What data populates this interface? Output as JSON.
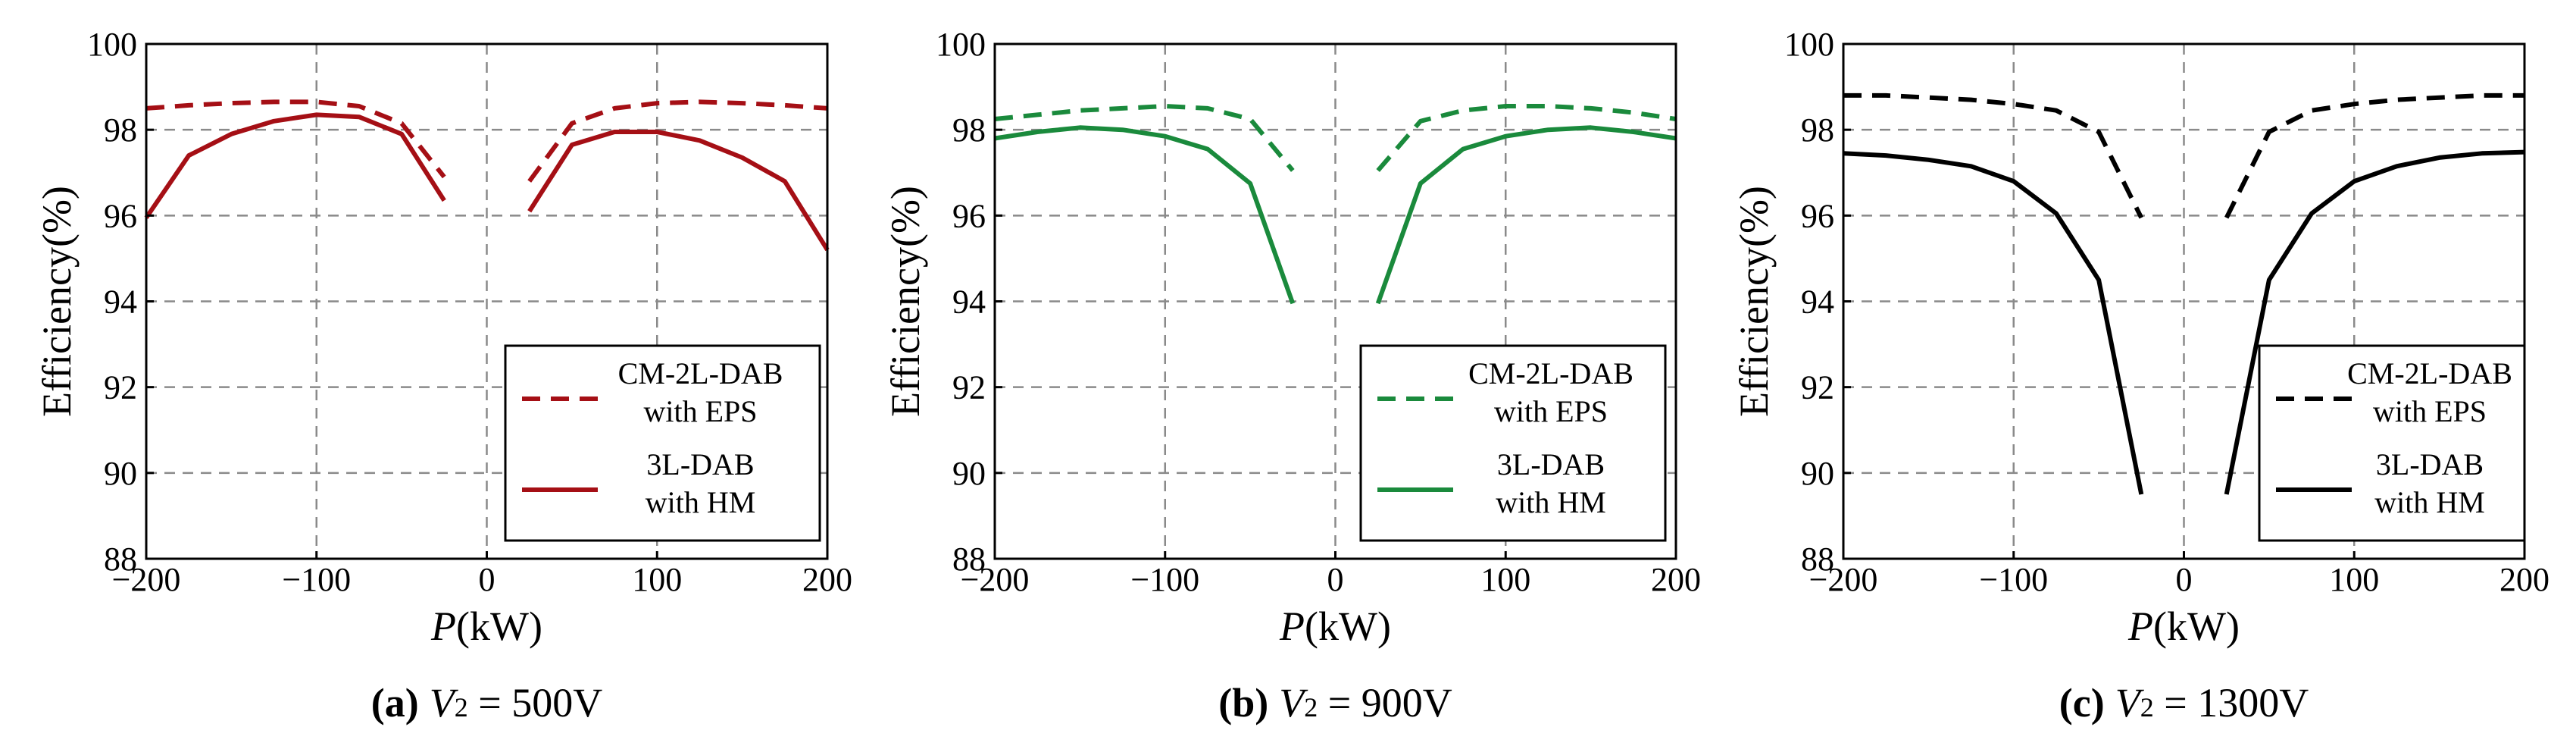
{
  "figure": {
    "axis_xlabel_var": "P",
    "axis_xlabel_unit": "(kW)",
    "axis_ylabel": "Efficiency(%)"
  },
  "chart_data": [
    {
      "type": "line",
      "panel_label": "(a)",
      "caption_var": "V",
      "caption_sub": "2",
      "caption_value": " = 500V",
      "xlabel": "P(kW)",
      "ylabel": "Efficiency(%)",
      "xlim": [
        -200,
        200
      ],
      "ylim": [
        88,
        100
      ],
      "xticks": [
        -200,
        -100,
        0,
        100,
        200
      ],
      "yticks": [
        88,
        90,
        92,
        94,
        96,
        98,
        100
      ],
      "xtick_labels": [
        "−200",
        "−100",
        "0",
        "100",
        "200"
      ],
      "ytick_labels": [
        "88",
        "90",
        "92",
        "94",
        "96",
        "98",
        "100"
      ],
      "grid": true,
      "color": "#a50f15",
      "legend_position": "bottom-right",
      "series": [
        {
          "name": "CM-2L-DAB with EPS",
          "legend_line1": "CM-2L-DAB",
          "legend_line2": "with EPS",
          "style": "dashed",
          "segments": [
            {
              "x": [
                -200,
                -175,
                -150,
                -125,
                -100,
                -75,
                -50,
                -25
              ],
              "y": [
                98.5,
                98.57,
                98.62,
                98.65,
                98.65,
                98.55,
                98.15,
                96.9
              ]
            },
            {
              "x": [
                25,
                50,
                75,
                100,
                125,
                150,
                175,
                200
              ],
              "y": [
                96.8,
                98.15,
                98.5,
                98.62,
                98.65,
                98.62,
                98.57,
                98.5
              ]
            }
          ]
        },
        {
          "name": "3L-DAB with HM",
          "legend_line1": "3L-DAB",
          "legend_line2": "with HM",
          "style": "solid",
          "segments": [
            {
              "x": [
                -200,
                -175,
                -150,
                -125,
                -100,
                -75,
                -50,
                -25
              ],
              "y": [
                95.95,
                97.4,
                97.9,
                98.2,
                98.35,
                98.3,
                97.9,
                96.35
              ]
            },
            {
              "x": [
                25,
                50,
                75,
                100,
                125,
                150,
                175,
                200
              ],
              "y": [
                96.1,
                97.65,
                97.95,
                97.95,
                97.75,
                97.35,
                96.8,
                95.2
              ]
            }
          ]
        }
      ]
    },
    {
      "type": "line",
      "panel_label": "(b)",
      "caption_var": "V",
      "caption_sub": "2",
      "caption_value": " = 900V",
      "xlabel": "P(kW)",
      "ylabel": "Efficiency(%)",
      "xlim": [
        -200,
        200
      ],
      "ylim": [
        88,
        100
      ],
      "xticks": [
        -200,
        -100,
        0,
        100,
        200
      ],
      "yticks": [
        88,
        90,
        92,
        94,
        96,
        98,
        100
      ],
      "xtick_labels": [
        "−200",
        "−100",
        "0",
        "100",
        "200"
      ],
      "ytick_labels": [
        "88",
        "90",
        "92",
        "94",
        "96",
        "98",
        "100"
      ],
      "grid": true,
      "color": "#1a8a3c",
      "legend_position": "bottom-right",
      "series": [
        {
          "name": "CM-2L-DAB with EPS",
          "legend_line1": "CM-2L-DAB",
          "legend_line2": "with EPS",
          "style": "dashed",
          "segments": [
            {
              "x": [
                -200,
                -175,
                -150,
                -125,
                -100,
                -75,
                -50,
                -25
              ],
              "y": [
                98.25,
                98.35,
                98.45,
                98.5,
                98.55,
                98.5,
                98.25,
                97.05
              ]
            },
            {
              "x": [
                25,
                50,
                75,
                100,
                125,
                150,
                175,
                200
              ],
              "y": [
                97.05,
                98.2,
                98.45,
                98.55,
                98.55,
                98.5,
                98.4,
                98.25
              ]
            }
          ]
        },
        {
          "name": "3L-DAB with HM",
          "legend_line1": "3L-DAB",
          "legend_line2": "with HM",
          "style": "solid",
          "segments": [
            {
              "x": [
                -200,
                -175,
                -150,
                -125,
                -100,
                -75,
                -50,
                -25
              ],
              "y": [
                97.8,
                97.95,
                98.05,
                98.0,
                97.85,
                97.55,
                96.75,
                93.95
              ]
            },
            {
              "x": [
                25,
                50,
                75,
                100,
                125,
                150,
                175,
                200
              ],
              "y": [
                93.95,
                96.75,
                97.55,
                97.85,
                98.0,
                98.05,
                97.95,
                97.8
              ]
            }
          ]
        }
      ]
    },
    {
      "type": "line",
      "panel_label": "(c)",
      "caption_var": "V",
      "caption_sub": "2",
      "caption_value": " = 1300V",
      "xlabel": "P(kW)",
      "ylabel": "Efficiency(%)",
      "xlim": [
        -200,
        200
      ],
      "ylim": [
        88,
        100
      ],
      "xticks": [
        -200,
        -100,
        0,
        100,
        200
      ],
      "yticks": [
        88,
        90,
        92,
        94,
        96,
        98,
        100
      ],
      "xtick_labels": [
        "−200",
        "−100",
        "0",
        "100",
        "200"
      ],
      "ytick_labels": [
        "88",
        "90",
        "92",
        "94",
        "96",
        "98",
        "100"
      ],
      "grid": true,
      "color": "#000000",
      "legend_position": "bottom-right",
      "series": [
        {
          "name": "CM-2L-DAB with EPS",
          "legend_line1": "CM-2L-DAB",
          "legend_line2": "with EPS",
          "style": "dashed",
          "segments": [
            {
              "x": [
                -200,
                -175,
                -150,
                -125,
                -100,
                -75,
                -50,
                -25
              ],
              "y": [
                98.8,
                98.8,
                98.75,
                98.7,
                98.6,
                98.45,
                97.95,
                95.95
              ]
            },
            {
              "x": [
                25,
                50,
                75,
                100,
                125,
                150,
                175,
                200
              ],
              "y": [
                95.95,
                97.95,
                98.45,
                98.6,
                98.7,
                98.75,
                98.8,
                98.8
              ]
            }
          ]
        },
        {
          "name": "3L-DAB with HM",
          "legend_line1": "3L-DAB",
          "legend_line2": "with HM",
          "style": "solid",
          "segments": [
            {
              "x": [
                -200,
                -175,
                -150,
                -125,
                -100,
                -75,
                -50,
                -25
              ],
              "y": [
                97.45,
                97.4,
                97.3,
                97.15,
                96.8,
                96.05,
                94.5,
                89.5
              ]
            },
            {
              "x": [
                25,
                50,
                75,
                100,
                125,
                150,
                175,
                200
              ],
              "y": [
                89.5,
                94.5,
                96.05,
                96.8,
                97.15,
                97.35,
                97.45,
                97.48
              ]
            }
          ]
        }
      ]
    }
  ]
}
